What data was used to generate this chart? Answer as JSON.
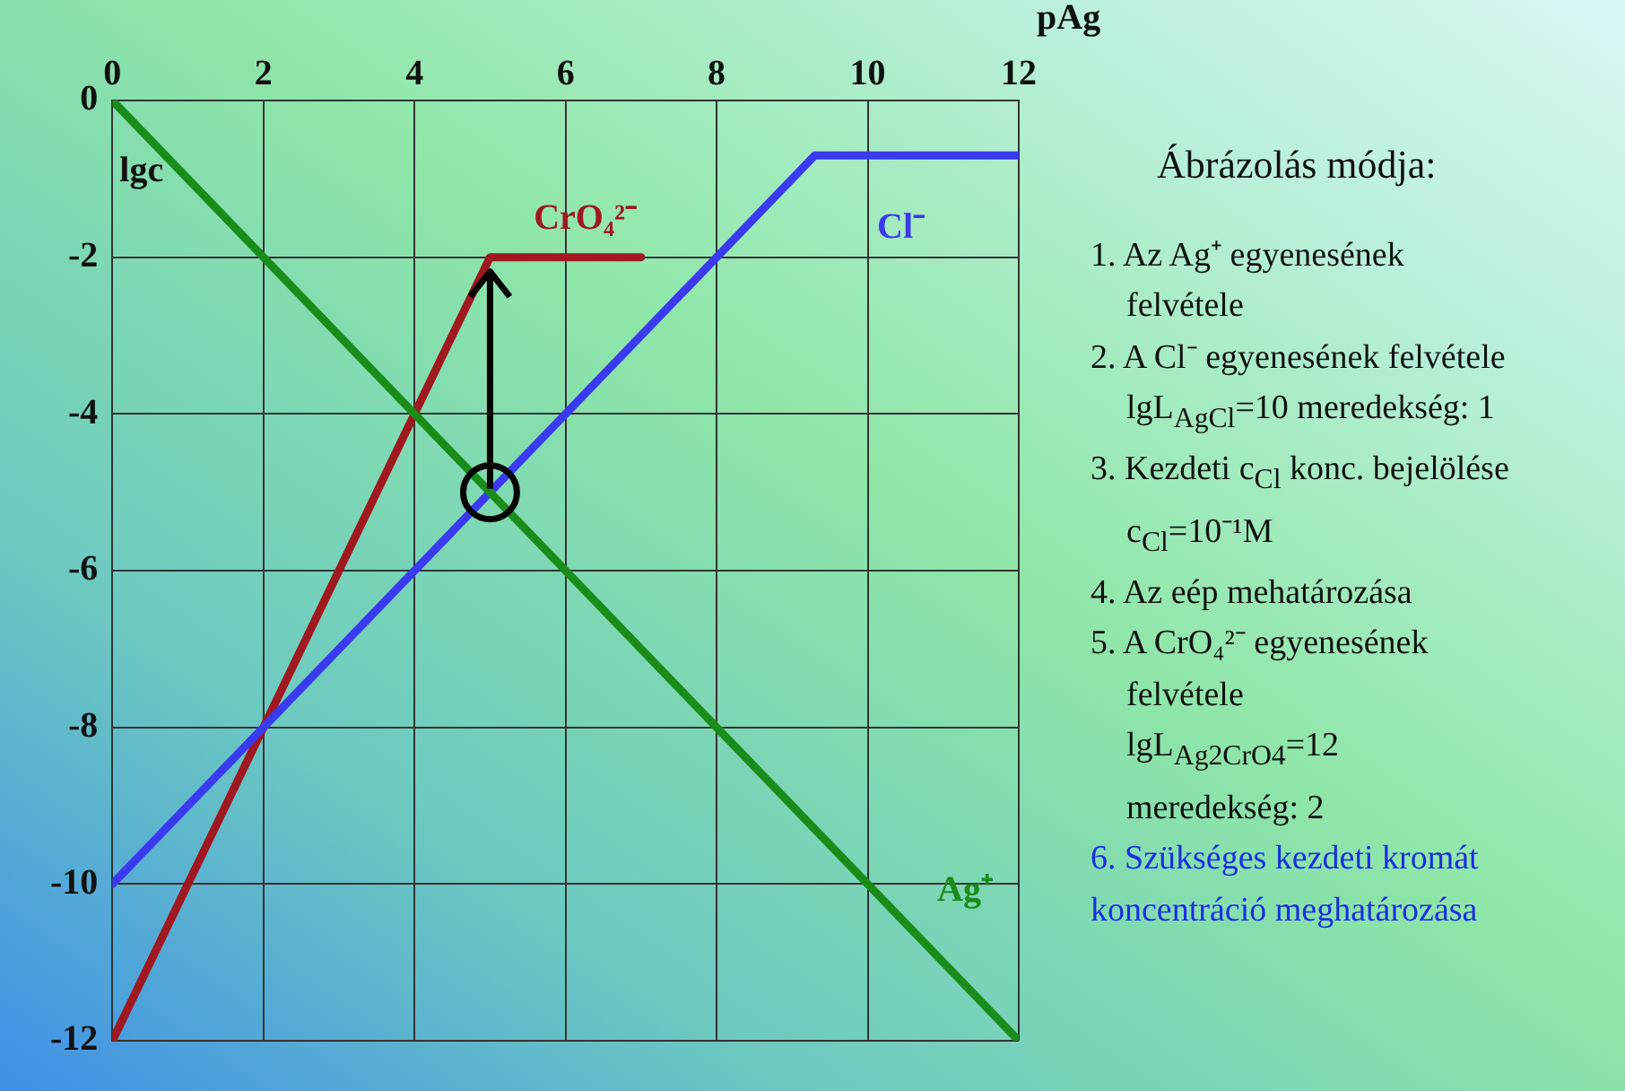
{
  "chart_data": {
    "type": "line",
    "xlabel": "pAg",
    "ylabel": "lgc",
    "xlim": [
      0,
      12
    ],
    "xticks": [
      0,
      2,
      4,
      6,
      8,
      10,
      12
    ],
    "ylim": [
      -12,
      0
    ],
    "yticks": [
      -12,
      -10,
      -8,
      -6,
      -4,
      -2,
      0
    ],
    "grid": true,
    "legend": false,
    "marker": "none",
    "line_style": "solid",
    "series": [
      {
        "name": "Ag⁺",
        "color": "#1a8c1a",
        "x": [
          0,
          12
        ],
        "values": [
          0,
          -12
        ]
      },
      {
        "name": "Cl⁻",
        "color": "#3a3af0",
        "x": [
          0,
          9.3,
          12
        ],
        "values": [
          -10,
          -0.7,
          -0.7
        ]
      },
      {
        "name": "CrO₄²⁻",
        "color": "#a01820",
        "x": [
          0,
          5,
          7
        ],
        "values": [
          -12,
          -2,
          -2
        ]
      }
    ],
    "annotations": [
      "Ábrázolás módja:",
      "1. Az Ag⁺ egyenesének",
      "felvétele",
      "2. A Cl⁻ egyenesének felvétele",
      "lgL$_{AgCl}$=10    meredekség: 1",
      "3. Kezdeti c$_{Cl}$ konc. bejelölése",
      "c$_{Cl}$=10⁻¹M",
      "4. Az eép mehatározása",
      "5. A CrO₄²⁻ egyenesének",
      "felvétele",
      "lgL$_{Ag2CrO4}$=12",
      "meredekség: 2",
      "6. Szükséges kezdeti kromát",
      "koncentráció meghatározása"
    ]
  }
}
